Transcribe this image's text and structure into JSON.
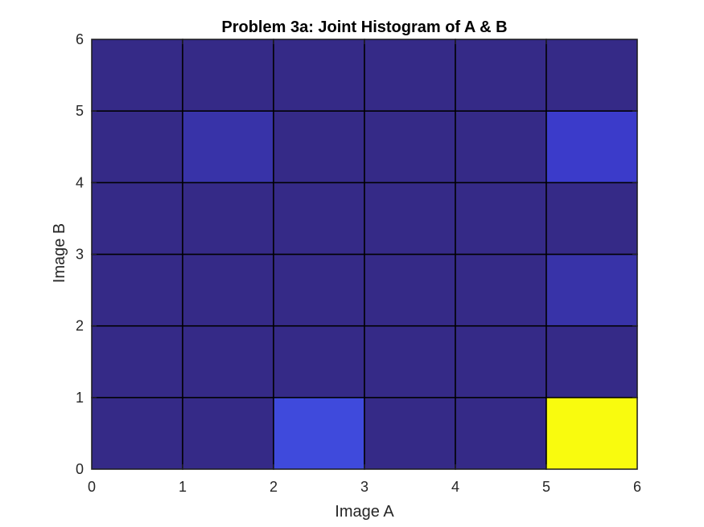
{
  "chart_data": {
    "type": "heatmap",
    "title": "Problem 3a: Joint Histogram of A & B",
    "xlabel": "Image A",
    "ylabel": "Image B",
    "xlim": [
      0,
      6
    ],
    "ylim": [
      0,
      6
    ],
    "x_ticks": [
      "0",
      "1",
      "2",
      "3",
      "4",
      "5",
      "6"
    ],
    "y_ticks": [
      "0",
      "1",
      "2",
      "3",
      "4",
      "5",
      "6"
    ],
    "x_bins": [
      [
        0,
        1
      ],
      [
        1,
        2
      ],
      [
        2,
        3
      ],
      [
        3,
        4
      ],
      [
        4,
        5
      ],
      [
        5,
        6
      ]
    ],
    "y_bins": [
      [
        0,
        1
      ],
      [
        1,
        2
      ],
      [
        2,
        3
      ],
      [
        3,
        4
      ],
      [
        4,
        5
      ],
      [
        5,
        6
      ]
    ],
    "values_note_rows": "rows indexed by Image B bin from bottom (0-1) to top (5-6), columns by Image A bin left to right",
    "values": [
      [
        0,
        0,
        3,
        0,
        0,
        20
      ],
      [
        0,
        0,
        0,
        0,
        0,
        0
      ],
      [
        0,
        0,
        0,
        0,
        0,
        1
      ],
      [
        0,
        0,
        0,
        0,
        0,
        0
      ],
      [
        0,
        1,
        0,
        0,
        0,
        2
      ],
      [
        0,
        0,
        0,
        0,
        0,
        0
      ]
    ],
    "colormap": "parula",
    "colormap_stops": [
      "#352a87",
      "#3c3dd1",
      "#4561f0",
      "#1b8ce3",
      "#0fa8c9",
      "#22b99b",
      "#82bf64",
      "#d0ba4a",
      "#fbc93a",
      "#f9fb0e"
    ],
    "cell_edge_color": "#000000",
    "grid": false
  }
}
